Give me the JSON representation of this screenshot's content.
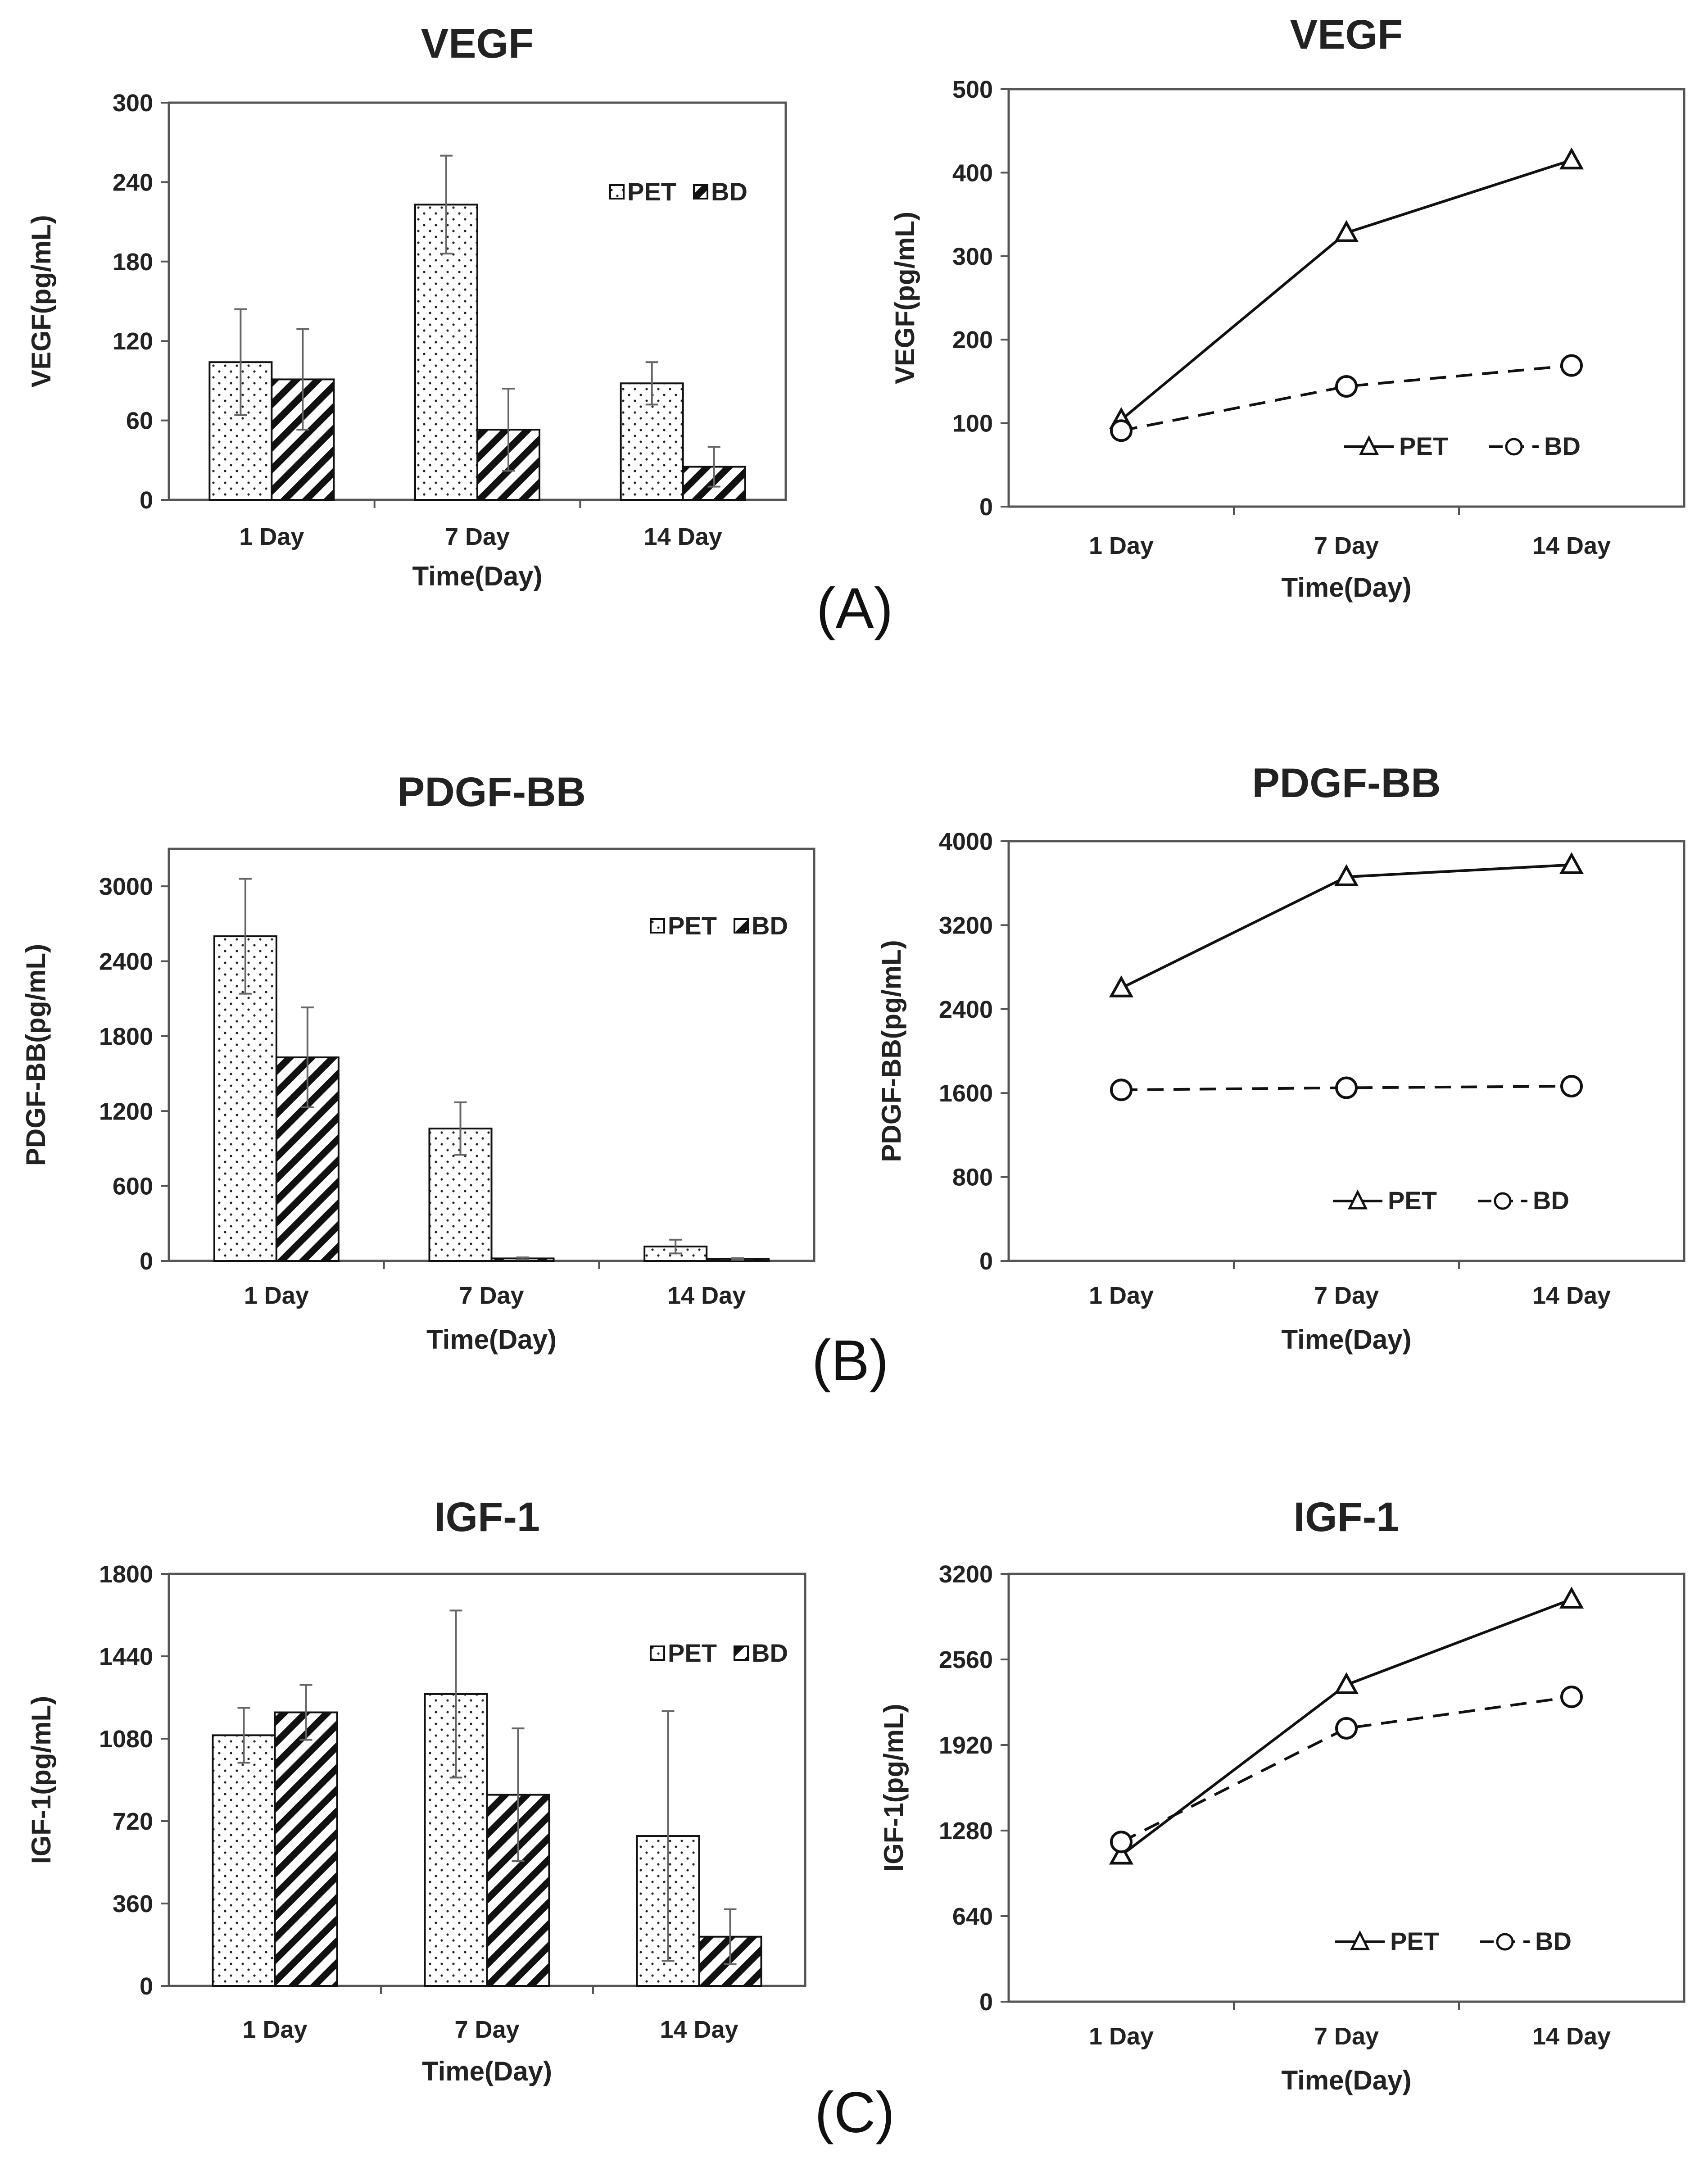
{
  "panel_labels": [
    "(A)",
    "(B)",
    "(C)"
  ],
  "chart_data": [
    {
      "id": "vegf-bar",
      "type": "bar",
      "title": "VEGF",
      "xlabel": "Time(Day)",
      "ylabel": "VEGF(pg/mL)",
      "categories": [
        "1 Day",
        "7 Day",
        "14 Day"
      ],
      "ylim": [
        0,
        300
      ],
      "yticks": [
        0,
        60,
        120,
        180,
        240,
        300
      ],
      "legend": "top-right",
      "grid": false,
      "series": [
        {
          "name": "PET",
          "pattern": "dots",
          "values": [
            104,
            223,
            88
          ],
          "errors": [
            40,
            37,
            16
          ]
        },
        {
          "name": "BD",
          "pattern": "hatch",
          "values": [
            91,
            53,
            25
          ],
          "errors": [
            38,
            31,
            15
          ]
        }
      ]
    },
    {
      "id": "vegf-line",
      "type": "line",
      "title": "VEGF",
      "xlabel": "Time(Day)",
      "ylabel": "VEGF(pg/mL)",
      "categories": [
        "1 Day",
        "7 Day",
        "14 Day"
      ],
      "ylim": [
        0,
        500
      ],
      "yticks": [
        0,
        100,
        200,
        300,
        400,
        500
      ],
      "legend": "bottom-right",
      "grid": false,
      "series": [
        {
          "name": "PET",
          "marker": "triangle",
          "dash": "solid",
          "values": [
            104,
            328,
            415
          ]
        },
        {
          "name": "BD",
          "marker": "circle",
          "dash": "dashed",
          "values": [
            91,
            144,
            169
          ]
        }
      ]
    },
    {
      "id": "pdgf-bar",
      "type": "bar",
      "title": "PDGF-BB",
      "xlabel": "Time(Day)",
      "ylabel": "PDGF-BB(pg/mL)",
      "categories": [
        "1 Day",
        "7 Day",
        "14 Day"
      ],
      "ylim": [
        0,
        3300
      ],
      "yticks": [
        0,
        600,
        1200,
        1800,
        2400,
        3000
      ],
      "legend": "top-right",
      "grid": false,
      "series": [
        {
          "name": "PET",
          "pattern": "dots",
          "values": [
            2600,
            1060,
            115
          ],
          "errors": [
            460,
            210,
            55
          ]
        },
        {
          "name": "BD",
          "pattern": "hatch",
          "values": [
            1630,
            20,
            15
          ],
          "errors": [
            400,
            8,
            6
          ]
        }
      ]
    },
    {
      "id": "pdgf-line",
      "type": "line",
      "title": "PDGF-BB",
      "xlabel": "Time(Day)",
      "ylabel": "PDGF-BB(pg/mL)",
      "categories": [
        "1 Day",
        "7 Day",
        "14 Day"
      ],
      "ylim": [
        0,
        4000
      ],
      "yticks": [
        0,
        800,
        1600,
        2400,
        3200,
        4000
      ],
      "legend": "bottom-right",
      "grid": false,
      "series": [
        {
          "name": "PET",
          "marker": "triangle",
          "dash": "solid",
          "values": [
            2600,
            3660,
            3775
          ]
        },
        {
          "name": "BD",
          "marker": "circle",
          "dash": "dashed",
          "values": [
            1630,
            1650,
            1665
          ]
        }
      ]
    },
    {
      "id": "igf-bar",
      "type": "bar",
      "title": "IGF-1",
      "xlabel": "Time(Day)",
      "ylabel": "IGF-1(pg/mL)",
      "categories": [
        "1 Day",
        "7 Day",
        "14 Day"
      ],
      "ylim": [
        0,
        1800
      ],
      "yticks": [
        0,
        360,
        720,
        1080,
        1440,
        1800
      ],
      "legend": "top-right",
      "grid": false,
      "series": [
        {
          "name": "PET",
          "pattern": "dots",
          "values": [
            1095,
            1275,
            655
          ],
          "errors": [
            120,
            365,
            545
          ]
        },
        {
          "name": "BD",
          "pattern": "hatch",
          "values": [
            1195,
            835,
            215
          ],
          "errors": [
            120,
            290,
            120
          ]
        }
      ]
    },
    {
      "id": "igf-line",
      "type": "line",
      "title": "IGF-1",
      "xlabel": "Time(Day)",
      "ylabel": "IGF-1(pg/mL)",
      "categories": [
        "1 Day",
        "7 Day",
        "14 Day"
      ],
      "ylim": [
        0,
        3200
      ],
      "yticks": [
        0,
        640,
        1280,
        1920,
        2560,
        3200
      ],
      "legend": "bottom-right",
      "grid": false,
      "series": [
        {
          "name": "PET",
          "marker": "triangle",
          "dash": "solid",
          "values": [
            1095,
            2370,
            3010
          ]
        },
        {
          "name": "BD",
          "marker": "circle",
          "dash": "dashed",
          "values": [
            1195,
            2045,
            2280
          ]
        }
      ]
    }
  ]
}
